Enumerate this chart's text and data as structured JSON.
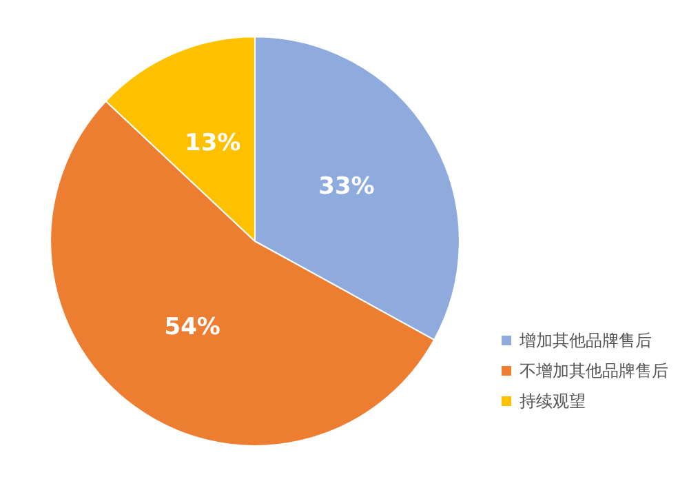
{
  "chart_data": {
    "type": "pie",
    "categories": [
      "增加其他品牌售后",
      "不增加其他品牌售后",
      "持续观望"
    ],
    "values": [
      33,
      54,
      13
    ],
    "colors": [
      "#8faadc",
      "#ed7d31",
      "#ffc000"
    ],
    "value_labels": [
      "33%",
      "54%",
      "13%"
    ],
    "legend": "bottom right"
  }
}
